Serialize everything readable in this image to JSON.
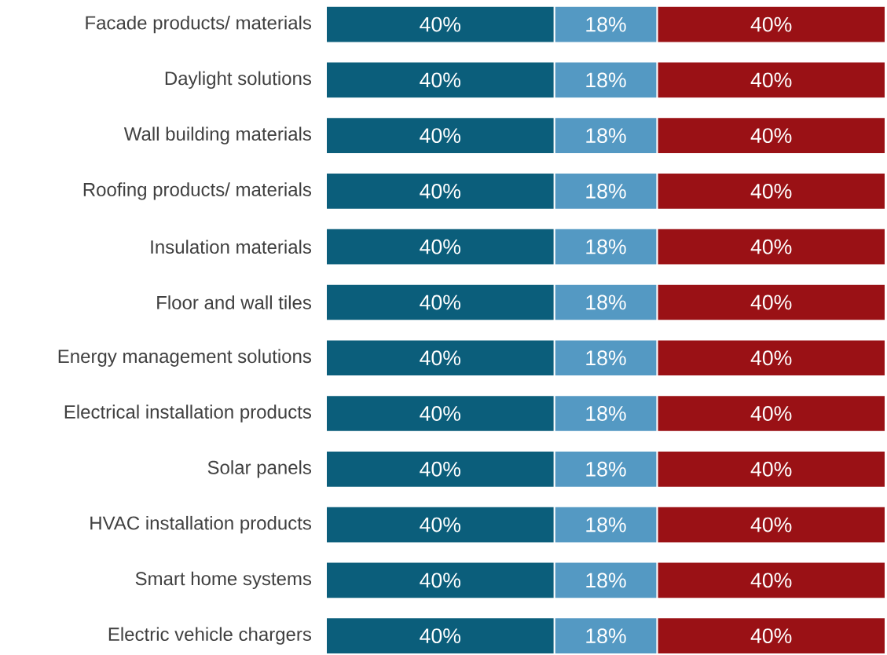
{
  "chart_data": {
    "type": "bar",
    "orientation": "horizontal",
    "stacked": true,
    "categories": [
      "Facade products/ materials",
      "Daylight solutions",
      "Wall building materials",
      "Roofing products/ materials",
      "Insulation materials",
      "Floor and wall tiles",
      "Energy management solutions",
      "Electrical installation products",
      "Solar panels",
      "HVAC installation products",
      "Smart home systems",
      "Electric vehicle chargers"
    ],
    "series": [
      {
        "color": "#0b5e7b",
        "values": [
          40,
          40,
          40,
          40,
          40,
          40,
          40,
          40,
          40,
          40,
          40,
          40
        ],
        "value_labels": [
          "40%",
          "40%",
          "40%",
          "40%",
          "40%",
          "40%",
          "40%",
          "40%",
          "40%",
          "40%",
          "40%",
          "40%"
        ]
      },
      {
        "color": "#5499c3",
        "values": [
          18,
          18,
          18,
          18,
          18,
          18,
          18,
          18,
          18,
          18,
          18,
          18
        ],
        "value_labels": [
          "18%",
          "18%",
          "18%",
          "18%",
          "18%",
          "18%",
          "18%",
          "18%",
          "18%",
          "18%",
          "18%",
          "18%"
        ]
      },
      {
        "color": "#9a1115",
        "values": [
          40,
          40,
          40,
          40,
          40,
          40,
          40,
          40,
          40,
          40,
          40,
          40
        ],
        "value_labels": [
          "40%",
          "40%",
          "40%",
          "40%",
          "40%",
          "40%",
          "40%",
          "40%",
          "40%",
          "40%",
          "40%",
          "40%"
        ]
      }
    ]
  }
}
